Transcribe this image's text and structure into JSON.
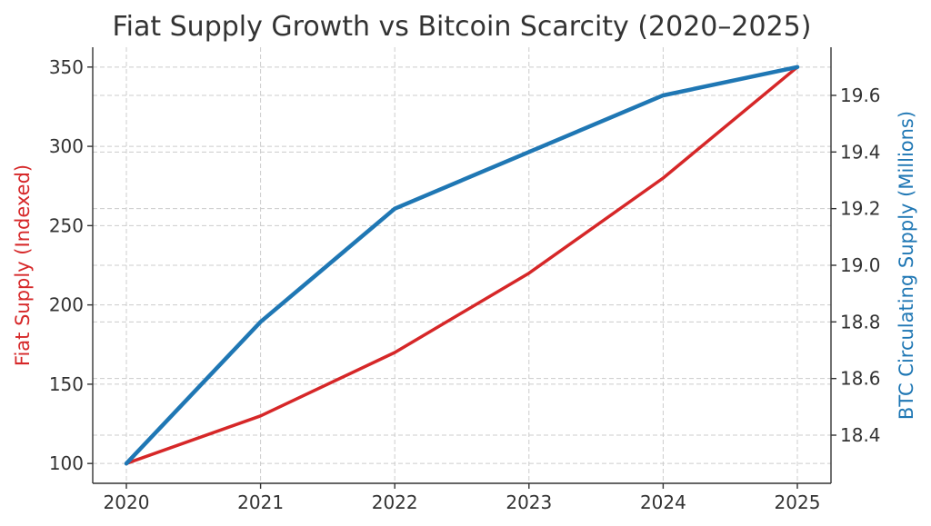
{
  "chart_data": {
    "type": "line",
    "title": "Fiat Supply Growth vs Bitcoin Scarcity (2020–2025)",
    "x": [
      "2020",
      "2021",
      "2022",
      "2023",
      "2024",
      "2025"
    ],
    "xlabel": "",
    "series": [
      {
        "name": "Fiat Supply (Indexed)",
        "axis": "left",
        "color": "#d62728",
        "values": [
          100,
          130,
          170,
          220,
          280,
          350
        ]
      },
      {
        "name": "BTC Circulating Supply (Millions)",
        "axis": "right",
        "color": "#1f77b4",
        "values": [
          18.3,
          18.8,
          19.2,
          19.4,
          19.6,
          19.7
        ]
      }
    ],
    "y_left": {
      "label": "Fiat Supply (Indexed)",
      "color": "#d62728",
      "ylim": [
        87.5,
        362.5
      ],
      "ticks": [
        100,
        150,
        200,
        250,
        300,
        350
      ],
      "tick_labels": [
        "100",
        "150",
        "200",
        "250",
        "300",
        "350"
      ]
    },
    "y_right": {
      "label": "BTC Circulating Supply (Millions)",
      "color": "#1f77b4",
      "ylim": [
        18.23,
        19.77
      ],
      "ticks": [
        18.4,
        18.6,
        18.8,
        19.0,
        19.2,
        19.4,
        19.6
      ],
      "tick_labels": [
        "18.4",
        "18.6",
        "18.8",
        "19.0",
        "19.2",
        "19.4",
        "19.6"
      ]
    },
    "grid": true
  }
}
